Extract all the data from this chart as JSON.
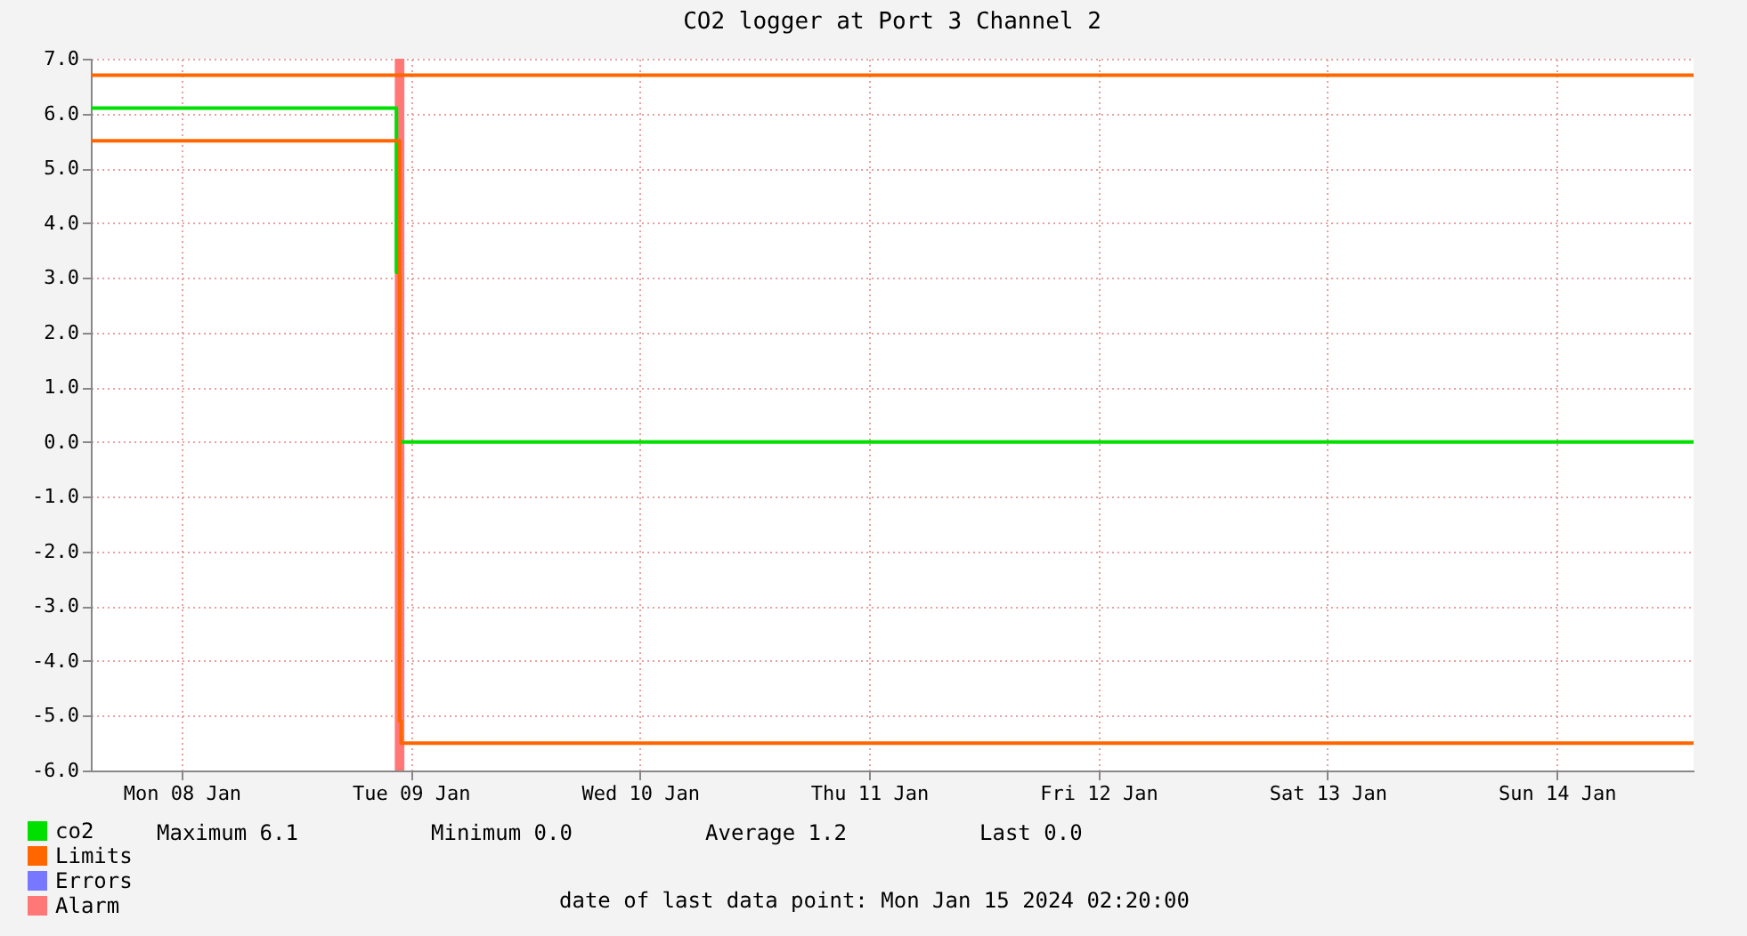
{
  "chart_data": {
    "type": "step",
    "title": "CO2 logger at Port 3 Channel 2",
    "ylim": [
      -6,
      7
    ],
    "yticks": [
      {
        "value": -6,
        "label": "-6.0"
      },
      {
        "value": -5,
        "label": "-5.0"
      },
      {
        "value": -4,
        "label": "-4.0"
      },
      {
        "value": -3,
        "label": "-3.0"
      },
      {
        "value": -2,
        "label": "-2.0"
      },
      {
        "value": -1,
        "label": "-1.0"
      },
      {
        "value": 0,
        "label": "0.0"
      },
      {
        "value": 1,
        "label": "1.0"
      },
      {
        "value": 2,
        "label": "2.0"
      },
      {
        "value": 3,
        "label": "3.0"
      },
      {
        "value": 4,
        "label": "4.0"
      },
      {
        "value": 5,
        "label": "5.0"
      },
      {
        "value": 6,
        "label": "6.0"
      },
      {
        "value": 7,
        "label": "7.0"
      }
    ],
    "xlim": [
      "2024-01-08T02:30",
      "2024-01-15T02:20"
    ],
    "xticks": [
      {
        "value": "2024-01-08T12:00",
        "label": "Mon 08 Jan"
      },
      {
        "value": "2024-01-09T12:00",
        "label": "Tue 09 Jan"
      },
      {
        "value": "2024-01-10T12:00",
        "label": "Wed 10 Jan"
      },
      {
        "value": "2024-01-11T12:00",
        "label": "Thu 11 Jan"
      },
      {
        "value": "2024-01-12T12:00",
        "label": "Fri 12 Jan"
      },
      {
        "value": "2024-01-13T12:00",
        "label": "Sat 13 Jan"
      },
      {
        "value": "2024-01-14T12:00",
        "label": "Sun 14 Jan"
      }
    ],
    "grid": true,
    "legend": "bottom left",
    "series": [
      {
        "name": "co2",
        "color": "#00e000",
        "x": [
          "2024-01-08T02:30",
          "2024-01-09T10:30",
          "2024-01-09T10:50",
          "2024-01-15T02:20"
        ],
        "values": [
          6.1,
          3.1,
          0.0,
          0.0
        ]
      },
      {
        "name": "Limits",
        "color": "#ff6600",
        "x": [
          "2024-01-08T02:30",
          "2024-01-15T02:20"
        ],
        "values": [
          6.7,
          6.7
        ]
      },
      {
        "color": "#ff6600",
        "x": [
          "2024-01-08T02:30",
          "2024-01-09T10:50",
          "2024-01-09T11:00",
          "2024-01-15T02:20"
        ],
        "values": [
          5.5,
          -5.1,
          -5.5,
          -5.5
        ]
      },
      {
        "name": "Errors",
        "color": "#7777ff"
      }
    ],
    "bands": [
      {
        "axis": "x",
        "from": "2024-01-09T10:20",
        "to": "2024-01-09T11:20",
        "label": "Alarm",
        "color": "#ff7777"
      }
    ],
    "annotations": [
      "Maximum   6.1",
      "Minimum   0.0",
      "Average   1.2",
      "Last   0.0",
      "date of last data point:  Mon Jan 15 2024 02:20:00"
    ]
  }
}
